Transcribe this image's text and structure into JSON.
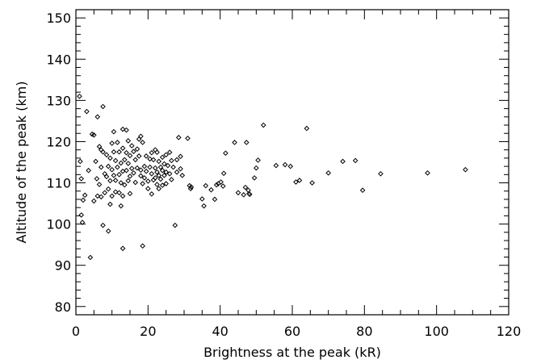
{
  "chart_data": {
    "type": "scatter",
    "title": "",
    "xlabel": "Brightness at the peak (kR)",
    "ylabel": "Altitude of the peak (km)",
    "xlim": [
      0,
      120
    ],
    "ylim": [
      78,
      152
    ],
    "x_ticks": [
      0,
      20,
      40,
      60,
      80,
      100,
      120
    ],
    "y_ticks": [
      80,
      90,
      100,
      110,
      120,
      130,
      140,
      150
    ],
    "x_tick_labels": [
      "0",
      "20",
      "40",
      "60",
      "80",
      "100",
      "120"
    ],
    "y_tick_labels": [
      "80",
      "90",
      "100",
      "110",
      "120",
      "130",
      "140",
      "150"
    ],
    "grid": false,
    "legend": "none",
    "marker": "diamond-open",
    "marker_color": "#000000",
    "series": [
      {
        "points": [
          [
            1,
            131
          ],
          [
            1.2,
            115.2
          ],
          [
            1.5,
            111
          ],
          [
            1.5,
            102.2
          ],
          [
            1.8,
            100.4
          ],
          [
            2,
            105.8
          ],
          [
            2.5,
            107
          ],
          [
            3,
            127.3
          ],
          [
            3.5,
            113
          ],
          [
            4,
            91.9
          ],
          [
            4.5,
            121.8
          ],
          [
            5,
            121.6
          ],
          [
            5,
            105.6
          ],
          [
            5.5,
            115.2
          ],
          [
            5.8,
            111
          ],
          [
            6,
            126
          ],
          [
            6,
            106.8
          ],
          [
            6.5,
            118.8
          ],
          [
            6.5,
            109.6
          ],
          [
            7,
            118
          ],
          [
            7,
            113.8
          ],
          [
            7,
            106.6
          ],
          [
            7.5,
            128.5
          ],
          [
            7.5,
            117.5
          ],
          [
            7.5,
            99.7
          ],
          [
            8,
            112.2
          ],
          [
            8,
            107.6
          ],
          [
            8.5,
            116.8
          ],
          [
            8.5,
            111.5
          ],
          [
            9,
            114
          ],
          [
            9,
            108.5
          ],
          [
            9,
            98.3
          ],
          [
            9.5,
            116
          ],
          [
            9.5,
            110.5
          ],
          [
            9.5,
            104.8
          ],
          [
            10,
            119.6
          ],
          [
            10,
            113.2
          ],
          [
            10,
            106.8
          ],
          [
            10.5,
            122.4
          ],
          [
            10.5,
            117.5
          ],
          [
            10.5,
            111.8
          ],
          [
            11,
            115.4
          ],
          [
            11,
            110.6
          ],
          [
            11,
            107.8
          ],
          [
            11.5,
            119.8
          ],
          [
            11.5,
            113.8
          ],
          [
            12,
            117.5
          ],
          [
            12,
            112
          ],
          [
            12,
            107.6
          ],
          [
            12.5,
            114.8
          ],
          [
            12.5,
            110
          ],
          [
            12.5,
            104.4
          ],
          [
            13,
            123
          ],
          [
            13,
            118.4
          ],
          [
            13,
            112.8
          ],
          [
            13,
            106.8
          ],
          [
            13,
            94.1
          ],
          [
            13.5,
            115.6
          ],
          [
            13.5,
            109.5
          ],
          [
            14,
            122.8
          ],
          [
            14,
            117.3
          ],
          [
            14,
            113
          ],
          [
            14.5,
            120.2
          ],
          [
            14.5,
            114.7
          ],
          [
            14.5,
            110.5
          ],
          [
            15,
            116.6
          ],
          [
            15,
            111.6
          ],
          [
            15,
            107.4
          ],
          [
            15.5,
            119
          ],
          [
            15.5,
            113.5
          ],
          [
            16,
            117.6
          ],
          [
            16,
            112.4
          ],
          [
            16.5,
            115.6
          ],
          [
            16.5,
            110.1
          ],
          [
            17,
            118.2
          ],
          [
            17,
            113.6
          ],
          [
            17.5,
            120.6
          ],
          [
            17.5,
            116.5
          ],
          [
            18,
            121.3
          ],
          [
            18,
            113.1
          ],
          [
            18,
            111.7
          ],
          [
            18.5,
            119.8
          ],
          [
            18.5,
            109.8
          ],
          [
            18.5,
            94.7
          ],
          [
            19,
            114
          ],
          [
            19,
            111.2
          ],
          [
            19.5,
            116.5
          ],
          [
            19.5,
            112.8
          ],
          [
            20,
            110.4
          ],
          [
            20,
            108.6
          ],
          [
            20.5,
            115.8
          ],
          [
            20.5,
            113.8
          ],
          [
            21,
            117.3
          ],
          [
            21,
            112.2
          ],
          [
            21,
            107.3
          ],
          [
            21.5,
            115.6
          ],
          [
            21.5,
            110.7
          ],
          [
            22,
            118
          ],
          [
            22,
            113.6
          ],
          [
            22,
            111.2
          ],
          [
            22.5,
            117.4
          ],
          [
            22.5,
            112.6
          ],
          [
            22.5,
            109.6
          ],
          [
            23,
            115.2
          ],
          [
            23,
            111.8
          ],
          [
            23,
            108.6
          ],
          [
            23.5,
            113.8
          ],
          [
            23.5,
            110.9
          ],
          [
            24,
            116.2
          ],
          [
            24,
            113
          ],
          [
            24,
            109.4
          ],
          [
            24.5,
            114.6
          ],
          [
            24.5,
            111.8
          ],
          [
            25,
            116.8
          ],
          [
            25,
            112.6
          ],
          [
            25,
            109.8
          ],
          [
            25.5,
            114.2
          ],
          [
            26,
            117.4
          ],
          [
            26,
            112.2
          ],
          [
            26.5,
            115.4
          ],
          [
            26.5,
            110.8
          ],
          [
            27,
            113.8
          ],
          [
            27.5,
            99.7
          ],
          [
            28,
            115.6
          ],
          [
            28,
            112.6
          ],
          [
            28.5,
            121
          ],
          [
            29,
            116.4
          ],
          [
            29,
            113.4
          ],
          [
            29.5,
            111.8
          ],
          [
            31,
            120.8
          ],
          [
            31.5,
            109.3
          ],
          [
            31.8,
            108.6
          ],
          [
            32,
            109
          ],
          [
            35,
            106.1
          ],
          [
            35.5,
            104.4
          ],
          [
            36,
            109.3
          ],
          [
            37.5,
            108.3
          ],
          [
            38.5,
            106
          ],
          [
            39,
            109.5
          ],
          [
            39.5,
            109.8
          ],
          [
            40.2,
            110.2
          ],
          [
            40.8,
            109.2
          ],
          [
            41,
            112.3
          ],
          [
            41.5,
            117.2
          ],
          [
            44,
            119.8
          ],
          [
            45,
            107.6
          ],
          [
            46.5,
            107.1
          ],
          [
            47,
            108.9
          ],
          [
            47.3,
            119.8
          ],
          [
            47.8,
            108.2
          ],
          [
            48,
            107.4
          ],
          [
            48.2,
            107.2
          ],
          [
            49.5,
            111.2
          ],
          [
            50,
            113.6
          ],
          [
            50.5,
            115.5
          ],
          [
            52,
            124
          ],
          [
            55.5,
            114.2
          ],
          [
            58,
            114.4
          ],
          [
            59.5,
            114
          ],
          [
            61,
            110.2
          ],
          [
            62,
            110.6
          ],
          [
            64,
            123.2
          ],
          [
            65.5,
            110
          ],
          [
            70,
            112.4
          ],
          [
            74,
            115.2
          ],
          [
            77.5,
            115.4
          ],
          [
            79.5,
            108.2
          ],
          [
            84.5,
            112.2
          ],
          [
            97.5,
            112.4
          ],
          [
            108,
            113.2
          ]
        ]
      }
    ]
  }
}
